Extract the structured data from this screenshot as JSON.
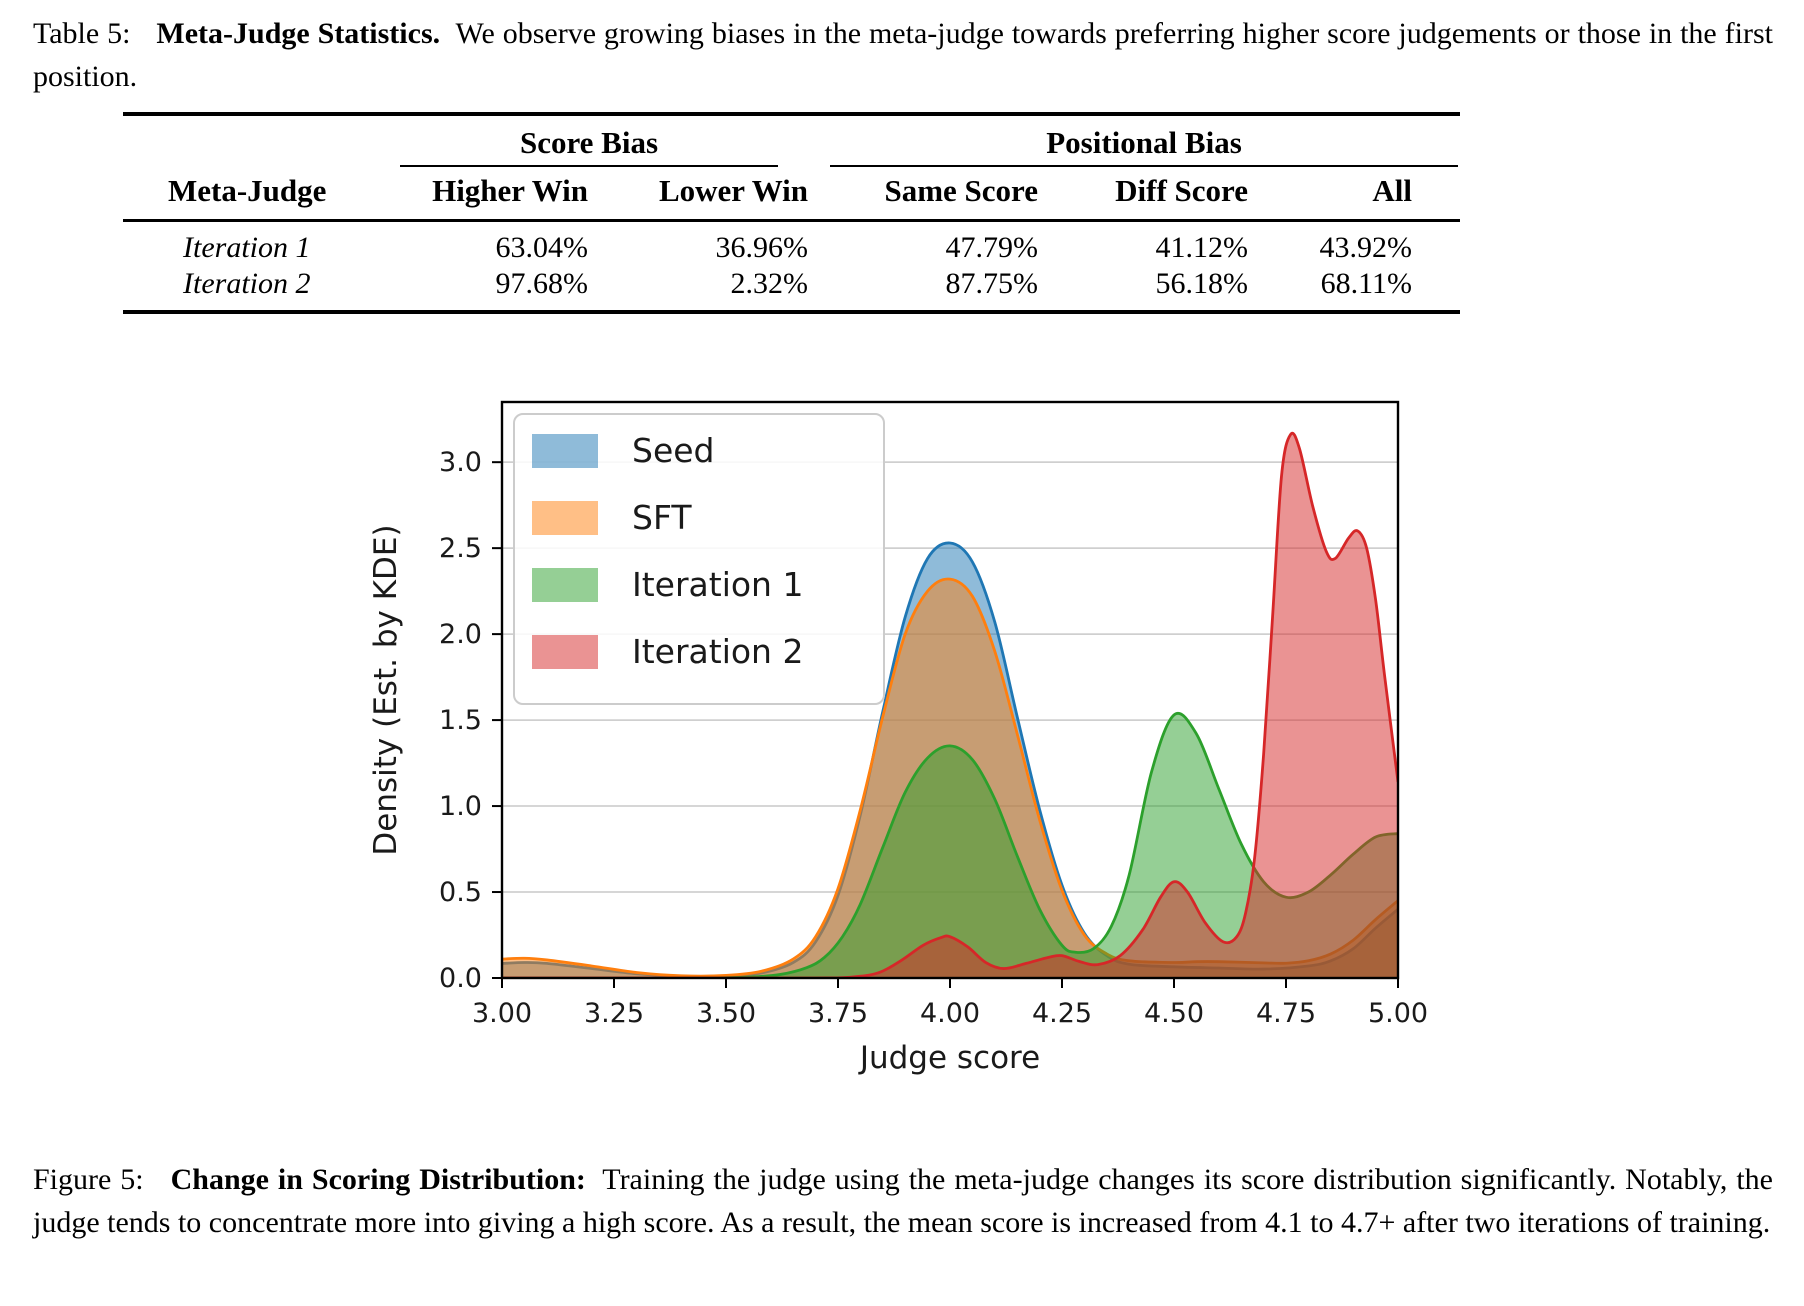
{
  "table_caption": {
    "prefix": "Table 5:",
    "title": "Meta-Judge Statistics.",
    "text": "We observe growing biases in the meta-judge towards preferring higher score judgements or those in the first position."
  },
  "table": {
    "group_headers": [
      {
        "label": "Score Bias"
      },
      {
        "label": "Positional Bias"
      }
    ],
    "col_headers": [
      "Meta-Judge",
      "Higher Win",
      "Lower Win",
      "Same Score",
      "Diff Score",
      "All"
    ],
    "rows": [
      {
        "label": "Iteration 1",
        "values": [
          "63.04%",
          "36.96%",
          "47.79%",
          "41.12%",
          "43.92%"
        ]
      },
      {
        "label": "Iteration 2",
        "values": [
          "97.68%",
          "2.32%",
          "87.75%",
          "56.18%",
          "68.11%"
        ]
      }
    ]
  },
  "chart_data": {
    "type": "area",
    "title": "",
    "xlabel": "Judge score",
    "ylabel": "Density (Est. by KDE)",
    "xlim": [
      3.0,
      5.0
    ],
    "ylim": [
      0.0,
      3.35
    ],
    "xticks": [
      "3.00",
      "3.25",
      "3.50",
      "3.75",
      "4.00",
      "4.25",
      "4.50",
      "4.75",
      "5.00"
    ],
    "yticks": [
      "0.0",
      "0.5",
      "1.0",
      "1.5",
      "2.0",
      "2.5",
      "3.0"
    ],
    "grid": "horizontal",
    "grid_color": "#c8c8c8",
    "legend_position": "top-left",
    "fill_alpha": 0.5,
    "series": [
      {
        "name": "Seed",
        "color": "#1f77b4",
        "points": [
          [
            3.0,
            0.085
          ],
          [
            3.05,
            0.09
          ],
          [
            3.1,
            0.085
          ],
          [
            3.2,
            0.055
          ],
          [
            3.3,
            0.025
          ],
          [
            3.4,
            0.01
          ],
          [
            3.5,
            0.012
          ],
          [
            3.58,
            0.03
          ],
          [
            3.65,
            0.09
          ],
          [
            3.7,
            0.21
          ],
          [
            3.75,
            0.48
          ],
          [
            3.8,
            0.95
          ],
          [
            3.85,
            1.55
          ],
          [
            3.9,
            2.1
          ],
          [
            3.95,
            2.44
          ],
          [
            4.0,
            2.53
          ],
          [
            4.05,
            2.42
          ],
          [
            4.1,
            2.07
          ],
          [
            4.15,
            1.52
          ],
          [
            4.2,
            0.98
          ],
          [
            4.25,
            0.54
          ],
          [
            4.3,
            0.26
          ],
          [
            4.35,
            0.13
          ],
          [
            4.4,
            0.08
          ],
          [
            4.5,
            0.065
          ],
          [
            4.6,
            0.058
          ],
          [
            4.7,
            0.052
          ],
          [
            4.8,
            0.07
          ],
          [
            4.85,
            0.1
          ],
          [
            4.9,
            0.17
          ],
          [
            4.95,
            0.29
          ],
          [
            5.0,
            0.4
          ]
        ]
      },
      {
        "name": "SFT",
        "color": "#ff7f0e",
        "points": [
          [
            3.0,
            0.11
          ],
          [
            3.05,
            0.115
          ],
          [
            3.1,
            0.105
          ],
          [
            3.2,
            0.07
          ],
          [
            3.3,
            0.032
          ],
          [
            3.4,
            0.013
          ],
          [
            3.5,
            0.015
          ],
          [
            3.58,
            0.04
          ],
          [
            3.65,
            0.11
          ],
          [
            3.7,
            0.24
          ],
          [
            3.75,
            0.52
          ],
          [
            3.8,
            0.98
          ],
          [
            3.85,
            1.52
          ],
          [
            3.9,
            2.0
          ],
          [
            3.95,
            2.25
          ],
          [
            4.0,
            2.32
          ],
          [
            4.05,
            2.22
          ],
          [
            4.1,
            1.9
          ],
          [
            4.15,
            1.42
          ],
          [
            4.2,
            0.92
          ],
          [
            4.25,
            0.51
          ],
          [
            4.3,
            0.25
          ],
          [
            4.35,
            0.14
          ],
          [
            4.4,
            0.1
          ],
          [
            4.5,
            0.09
          ],
          [
            4.55,
            0.095
          ],
          [
            4.6,
            0.095
          ],
          [
            4.7,
            0.088
          ],
          [
            4.75,
            0.086
          ],
          [
            4.8,
            0.1
          ],
          [
            4.85,
            0.14
          ],
          [
            4.9,
            0.22
          ],
          [
            4.95,
            0.34
          ],
          [
            5.0,
            0.45
          ]
        ]
      },
      {
        "name": "Iteration 1",
        "color": "#2ca02c",
        "points": [
          [
            3.0,
            0.0
          ],
          [
            3.3,
            0.0
          ],
          [
            3.45,
            0.0
          ],
          [
            3.55,
            0.005
          ],
          [
            3.62,
            0.02
          ],
          [
            3.68,
            0.06
          ],
          [
            3.72,
            0.12
          ],
          [
            3.76,
            0.24
          ],
          [
            3.8,
            0.43
          ],
          [
            3.85,
            0.76
          ],
          [
            3.9,
            1.08
          ],
          [
            3.95,
            1.28
          ],
          [
            4.0,
            1.35
          ],
          [
            4.05,
            1.27
          ],
          [
            4.1,
            1.04
          ],
          [
            4.15,
            0.71
          ],
          [
            4.2,
            0.4
          ],
          [
            4.25,
            0.19
          ],
          [
            4.28,
            0.15
          ],
          [
            4.32,
            0.17
          ],
          [
            4.36,
            0.3
          ],
          [
            4.4,
            0.6
          ],
          [
            4.45,
            1.2
          ],
          [
            4.5,
            1.53
          ],
          [
            4.55,
            1.42
          ],
          [
            4.6,
            1.1
          ],
          [
            4.65,
            0.78
          ],
          [
            4.7,
            0.56
          ],
          [
            4.75,
            0.47
          ],
          [
            4.8,
            0.5
          ],
          [
            4.85,
            0.6
          ],
          [
            4.9,
            0.72
          ],
          [
            4.95,
            0.82
          ],
          [
            5.0,
            0.84
          ]
        ]
      },
      {
        "name": "Iteration 2",
        "color": "#d62728",
        "points": [
          [
            3.0,
            0.0
          ],
          [
            3.4,
            0.0
          ],
          [
            3.7,
            0.0
          ],
          [
            3.78,
            0.005
          ],
          [
            3.84,
            0.03
          ],
          [
            3.89,
            0.1
          ],
          [
            3.94,
            0.19
          ],
          [
            3.98,
            0.235
          ],
          [
            4.0,
            0.24
          ],
          [
            4.04,
            0.18
          ],
          [
            4.08,
            0.09
          ],
          [
            4.12,
            0.055
          ],
          [
            4.17,
            0.085
          ],
          [
            4.22,
            0.12
          ],
          [
            4.25,
            0.13
          ],
          [
            4.29,
            0.095
          ],
          [
            4.33,
            0.078
          ],
          [
            4.38,
            0.13
          ],
          [
            4.43,
            0.28
          ],
          [
            4.47,
            0.47
          ],
          [
            4.5,
            0.56
          ],
          [
            4.53,
            0.5
          ],
          [
            4.57,
            0.32
          ],
          [
            4.61,
            0.21
          ],
          [
            4.64,
            0.24
          ],
          [
            4.66,
            0.38
          ],
          [
            4.68,
            0.7
          ],
          [
            4.7,
            1.3
          ],
          [
            4.72,
            2.1
          ],
          [
            4.74,
            2.92
          ],
          [
            4.76,
            3.16
          ],
          [
            4.78,
            3.08
          ],
          [
            4.81,
            2.74
          ],
          [
            4.84,
            2.48
          ],
          [
            4.86,
            2.44
          ],
          [
            4.89,
            2.56
          ],
          [
            4.91,
            2.6
          ],
          [
            4.93,
            2.5
          ],
          [
            4.95,
            2.2
          ],
          [
            4.97,
            1.76
          ],
          [
            5.0,
            1.14
          ]
        ]
      }
    ]
  },
  "figure_caption": {
    "prefix": "Figure 5:",
    "title": "Change in Scoring Distribution:",
    "text": "Training the judge using the meta-judge changes its score distribution significantly. Notably, the judge tends to concentrate more into giving a high score. As a result, the mean score is increased from 4.1 to 4.7+ after two iterations of training."
  }
}
